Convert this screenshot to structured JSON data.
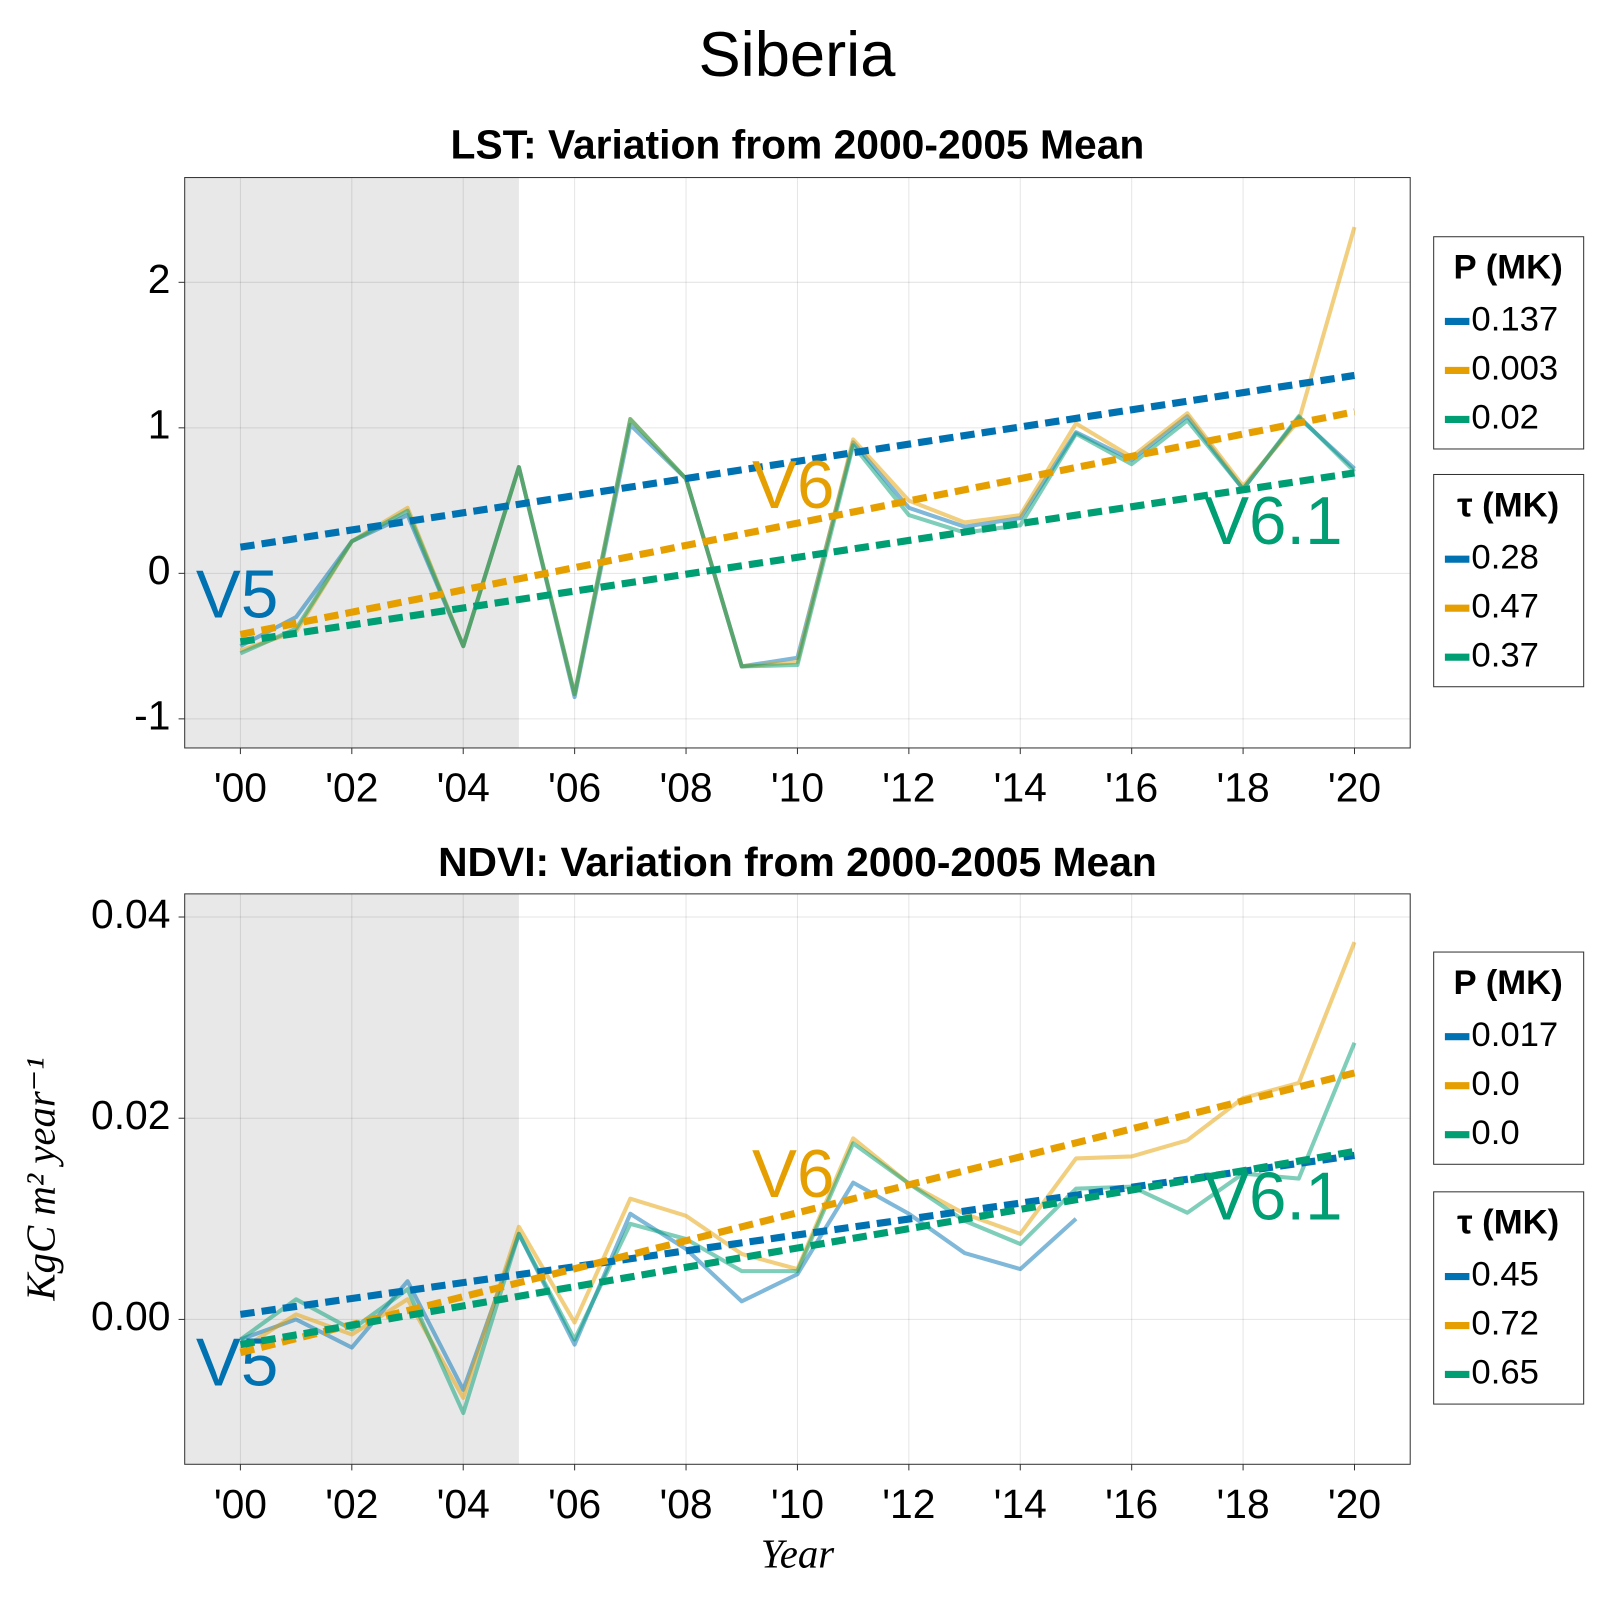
{
  "title": "Siberia",
  "chart_data": [
    {
      "type": "line",
      "title": "LST: Variation from 2000-2005 Mean",
      "x": [
        2000,
        2001,
        2002,
        2003,
        2004,
        2005,
        2006,
        2007,
        2008,
        2009,
        2010,
        2011,
        2012,
        2013,
        2014,
        2015,
        2016,
        2017,
        2018,
        2019,
        2020
      ],
      "series": [
        {
          "name": "V5",
          "color": "#0072b2",
          "values": [
            -0.5,
            -0.3,
            0.22,
            0.4,
            -0.5,
            0.73,
            -0.85,
            1.02,
            0.65,
            -0.64,
            -0.58,
            0.9,
            0.45,
            0.32,
            0.38,
            0.97,
            0.78,
            1.08,
            0.58,
            1.07,
            0.72
          ],
          "trend": [
            0.18,
            1.36
          ]
        },
        {
          "name": "V6",
          "color": "#e69f00",
          "values": [
            -0.53,
            -0.4,
            0.22,
            0.45,
            -0.5,
            0.73,
            -0.83,
            1.06,
            0.65,
            -0.64,
            -0.61,
            0.92,
            0.5,
            0.35,
            0.4,
            1.03,
            0.8,
            1.1,
            0.6,
            1.05,
            2.38
          ],
          "trend": [
            -0.42,
            1.11
          ]
        },
        {
          "name": "V6.1",
          "color": "#009e73",
          "values": [
            -0.55,
            -0.38,
            0.22,
            0.43,
            -0.5,
            0.73,
            -0.83,
            1.06,
            0.65,
            -0.64,
            -0.63,
            0.88,
            0.4,
            0.28,
            0.33,
            0.96,
            0.75,
            1.05,
            0.58,
            1.08,
            0.7
          ],
          "trend": [
            -0.47,
            0.69
          ]
        }
      ],
      "trend_x": [
        2000,
        2020
      ],
      "baseline": [
        1999,
        2005
      ],
      "xlim": [
        1999,
        2021
      ],
      "xticks": [
        {
          "value": 2000,
          "label": "'00"
        },
        {
          "value": 2002,
          "label": "'02"
        },
        {
          "value": 2004,
          "label": "'04"
        },
        {
          "value": 2006,
          "label": "'06"
        },
        {
          "value": 2008,
          "label": "'08"
        },
        {
          "value": 2010,
          "label": "'10"
        },
        {
          "value": 2012,
          "label": "'12"
        },
        {
          "value": 2014,
          "label": "'14"
        },
        {
          "value": 2016,
          "label": "'16"
        },
        {
          "value": 2018,
          "label": "'18"
        },
        {
          "value": 2020,
          "label": "'20"
        }
      ],
      "ylim": [
        -1.2,
        2.72
      ],
      "yticks": [
        -1,
        0,
        1,
        2
      ],
      "grid": true,
      "legends": [
        {
          "title": "P (MK)",
          "entries": [
            "0.137",
            "0.003",
            "0.02"
          ]
        },
        {
          "title": "τ (MK)",
          "entries": [
            "0.28",
            "0.47",
            "0.37"
          ]
        }
      ]
    },
    {
      "type": "line",
      "title": "NDVI: Variation from 2000-2005 Mean",
      "x": [
        2000,
        2001,
        2002,
        2003,
        2004,
        2005,
        2006,
        2007,
        2008,
        2009,
        2010,
        2011,
        2012,
        2013,
        2014,
        2015,
        2016,
        2017,
        2018,
        2019,
        2020
      ],
      "series": [
        {
          "name": "V5",
          "color": "#0072b2",
          "values": [
            -0.002,
            0.0,
            -0.0028,
            0.0038,
            -0.007,
            0.0085,
            -0.0025,
            0.0105,
            0.007,
            0.0018,
            0.0045,
            0.0136,
            0.0105,
            0.0066,
            0.005,
            0.01,
            null,
            null,
            null,
            null,
            null
          ],
          "trend": [
            0.0005,
            0.0163
          ]
        },
        {
          "name": "V6",
          "color": "#e69f00",
          "values": [
            -0.003,
            0.0005,
            -0.0015,
            0.002,
            -0.0078,
            0.0092,
            -0.0003,
            0.012,
            0.0103,
            0.0065,
            0.005,
            0.018,
            0.0135,
            0.0105,
            0.0085,
            0.016,
            0.0162,
            0.0178,
            0.022,
            0.0235,
            0.0375
          ],
          "trend": [
            -0.0033,
            0.0245
          ]
        },
        {
          "name": "V6.1",
          "color": "#009e73",
          "values": [
            -0.002,
            0.002,
            -0.001,
            0.003,
            -0.0093,
            0.0085,
            -0.002,
            0.0095,
            0.008,
            0.0048,
            0.0048,
            0.0175,
            0.0135,
            0.0098,
            0.0075,
            0.013,
            0.0132,
            0.0106,
            0.0145,
            0.014,
            0.0275
          ],
          "trend": [
            -0.0025,
            0.0167
          ]
        }
      ],
      "trend_x": [
        2000,
        2020
      ],
      "baseline": [
        1999,
        2005
      ],
      "xlim": [
        1999,
        2021
      ],
      "xticks": [
        {
          "value": 2000,
          "label": "'00"
        },
        {
          "value": 2002,
          "label": "'02"
        },
        {
          "value": 2004,
          "label": "'04"
        },
        {
          "value": 2006,
          "label": "'06"
        },
        {
          "value": 2008,
          "label": "'08"
        },
        {
          "value": 2010,
          "label": "'10"
        },
        {
          "value": 2012,
          "label": "'12"
        },
        {
          "value": 2014,
          "label": "'14"
        },
        {
          "value": 2016,
          "label": "'16"
        },
        {
          "value": 2018,
          "label": "'18"
        },
        {
          "value": 2020,
          "label": "'20"
        }
      ],
      "ylim": [
        -0.0144,
        0.0423
      ],
      "yticks": [
        {
          "value": 0,
          "label": "0.00"
        },
        0.02,
        0.04
      ],
      "grid": true,
      "xlabel": "Year",
      "ylabel": "KgC m² year⁻¹",
      "legends": [
        {
          "title": "P (MK)",
          "entries": [
            "0.017",
            "0.0",
            "0.0"
          ]
        },
        {
          "title": "τ (MK)",
          "entries": [
            "0.45",
            "0.72",
            "0.65"
          ]
        }
      ]
    }
  ]
}
